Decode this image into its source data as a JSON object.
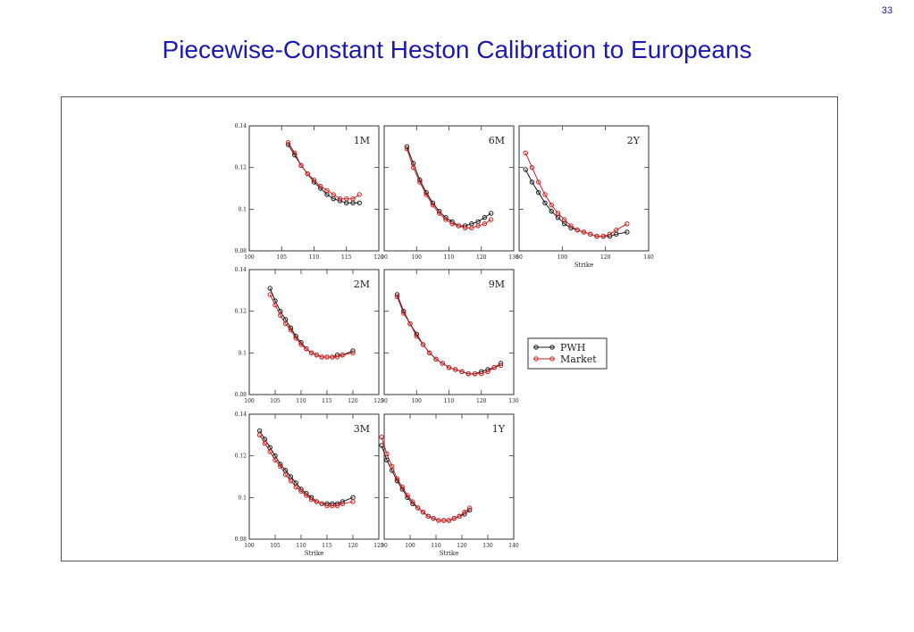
{
  "page": {
    "number": "33",
    "title": "Piecewise-Constant Heston Calibration to Europeans"
  },
  "colors": {
    "pwh": "#1a1a1a",
    "market": "#d22020",
    "title": "#1a1ab0"
  },
  "legend": {
    "entries": [
      "PWH",
      "Market"
    ]
  },
  "chart_data": [
    {
      "type": "line",
      "label": "1M",
      "xlim": [
        100,
        120
      ],
      "ylim": [
        0.08,
        0.14
      ],
      "xticks": [
        "100",
        "105",
        "110",
        "115",
        "120"
      ],
      "yticks": [
        "0.08",
        "0.1",
        "0.12",
        "0.14"
      ],
      "xlabel": "",
      "series": [
        {
          "name": "PWH",
          "x": [
            106,
            107,
            108,
            109,
            110,
            111,
            112,
            113,
            114,
            115,
            116,
            117
          ],
          "y": [
            0.131,
            0.126,
            0.121,
            0.117,
            0.113,
            0.11,
            0.107,
            0.105,
            0.104,
            0.103,
            0.103,
            0.103
          ]
        },
        {
          "name": "Market",
          "x": [
            106,
            107,
            108,
            109,
            110,
            111,
            112,
            113,
            114,
            115,
            116,
            117
          ],
          "y": [
            0.132,
            0.127,
            0.121,
            0.117,
            0.114,
            0.111,
            0.109,
            0.107,
            0.105,
            0.105,
            0.105,
            0.107
          ]
        }
      ]
    },
    {
      "type": "line",
      "label": "6M",
      "xlim": [
        90,
        130
      ],
      "ylim": [
        0.08,
        0.14
      ],
      "xticks": [
        "90",
        "100",
        "110",
        "120",
        "130"
      ],
      "yticks": [],
      "xlabel": "",
      "series": [
        {
          "name": "PWH",
          "x": [
            97,
            99,
            101,
            103,
            105,
            107,
            109,
            111,
            113,
            115,
            117,
            119,
            121,
            123
          ],
          "y": [
            0.13,
            0.122,
            0.114,
            0.108,
            0.103,
            0.099,
            0.096,
            0.094,
            0.092,
            0.092,
            0.093,
            0.094,
            0.096,
            0.098
          ]
        },
        {
          "name": "Market",
          "x": [
            97,
            99,
            101,
            103,
            105,
            107,
            109,
            111,
            113,
            115,
            117,
            119,
            121,
            123
          ],
          "y": [
            0.129,
            0.12,
            0.113,
            0.107,
            0.102,
            0.098,
            0.095,
            0.093,
            0.092,
            0.091,
            0.091,
            0.092,
            0.093,
            0.095
          ]
        }
      ]
    },
    {
      "type": "line",
      "label": "2Y",
      "xlim": [
        80,
        140
      ],
      "ylim": [
        0.08,
        0.14
      ],
      "xticks": [
        "80",
        "100",
        "120",
        "140"
      ],
      "yticks": [],
      "xlabel": "Strike",
      "series": [
        {
          "name": "PWH",
          "x": [
            83,
            86,
            89,
            92,
            95,
            98,
            101,
            104,
            107,
            110,
            113,
            116,
            119,
            122,
            125,
            130
          ],
          "y": [
            0.119,
            0.113,
            0.108,
            0.103,
            0.099,
            0.096,
            0.093,
            0.091,
            0.09,
            0.089,
            0.088,
            0.087,
            0.087,
            0.087,
            0.088,
            0.089
          ]
        },
        {
          "name": "Market",
          "x": [
            83,
            86,
            89,
            92,
            95,
            98,
            101,
            104,
            107,
            110,
            113,
            116,
            119,
            122,
            125,
            130
          ],
          "y": [
            0.127,
            0.12,
            0.113,
            0.107,
            0.102,
            0.098,
            0.095,
            0.092,
            0.09,
            0.089,
            0.088,
            0.087,
            0.087,
            0.088,
            0.09,
            0.093
          ]
        }
      ]
    },
    {
      "type": "line",
      "label": "2M",
      "xlim": [
        100,
        125
      ],
      "ylim": [
        0.08,
        0.14
      ],
      "xticks": [
        "100",
        "105",
        "110",
        "115",
        "120",
        "125"
      ],
      "yticks": [
        "0.08",
        "0.1",
        "0.12",
        "0.14"
      ],
      "xlabel": "",
      "series": [
        {
          "name": "PWH",
          "x": [
            104,
            105,
            106,
            107,
            108,
            109,
            110,
            111,
            112,
            113,
            114,
            115,
            116,
            117,
            118,
            120
          ],
          "y": [
            0.131,
            0.125,
            0.12,
            0.116,
            0.112,
            0.108,
            0.105,
            0.102,
            0.1,
            0.099,
            0.098,
            0.098,
            0.098,
            0.099,
            0.099,
            0.101
          ]
        },
        {
          "name": "Market",
          "x": [
            104,
            105,
            106,
            107,
            108,
            109,
            110,
            111,
            112,
            113,
            114,
            115,
            116,
            117,
            118,
            120
          ],
          "y": [
            0.128,
            0.123,
            0.118,
            0.114,
            0.111,
            0.107,
            0.104,
            0.102,
            0.1,
            0.099,
            0.098,
            0.098,
            0.098,
            0.098,
            0.099,
            0.1
          ]
        }
      ]
    },
    {
      "type": "line",
      "label": "9M",
      "xlim": [
        90,
        130
      ],
      "ylim": [
        0.08,
        0.14
      ],
      "xticks": [
        "90",
        "100",
        "110",
        "120",
        "130"
      ],
      "yticks": [],
      "xlabel": "",
      "series": [
        {
          "name": "PWH",
          "x": [
            94,
            96,
            98,
            100,
            102,
            104,
            106,
            108,
            110,
            112,
            114,
            116,
            118,
            120,
            122,
            124,
            126
          ],
          "y": [
            0.128,
            0.12,
            0.114,
            0.109,
            0.104,
            0.1,
            0.097,
            0.095,
            0.093,
            0.092,
            0.091,
            0.09,
            0.09,
            0.091,
            0.092,
            0.093,
            0.095
          ]
        },
        {
          "name": "Market",
          "x": [
            94,
            96,
            98,
            100,
            102,
            104,
            106,
            108,
            110,
            112,
            114,
            116,
            118,
            120,
            122,
            124,
            126
          ],
          "y": [
            0.127,
            0.119,
            0.114,
            0.108,
            0.104,
            0.1,
            0.097,
            0.095,
            0.093,
            0.092,
            0.091,
            0.09,
            0.09,
            0.09,
            0.091,
            0.093,
            0.094
          ]
        }
      ]
    },
    {
      "type": "line",
      "label": "3M",
      "xlim": [
        100,
        125
      ],
      "ylim": [
        0.08,
        0.14
      ],
      "xticks": [
        "100",
        "105",
        "110",
        "115",
        "120",
        "125"
      ],
      "yticks": [
        "0.08",
        "0.1",
        "0.12",
        "0.14"
      ],
      "xlabel": "Strike",
      "series": [
        {
          "name": "PWH",
          "x": [
            102,
            103,
            104,
            105,
            106,
            107,
            108,
            109,
            110,
            111,
            112,
            113,
            114,
            115,
            116,
            117,
            118,
            120
          ],
          "y": [
            0.132,
            0.128,
            0.124,
            0.12,
            0.116,
            0.113,
            0.11,
            0.107,
            0.104,
            0.102,
            0.1,
            0.098,
            0.097,
            0.097,
            0.097,
            0.097,
            0.098,
            0.1
          ]
        },
        {
          "name": "Market",
          "x": [
            102,
            103,
            104,
            105,
            106,
            107,
            108,
            109,
            110,
            111,
            112,
            113,
            114,
            115,
            116,
            117,
            118,
            120
          ],
          "y": [
            0.13,
            0.126,
            0.122,
            0.118,
            0.115,
            0.111,
            0.108,
            0.105,
            0.103,
            0.101,
            0.099,
            0.098,
            0.097,
            0.096,
            0.096,
            0.096,
            0.097,
            0.098
          ]
        }
      ]
    },
    {
      "type": "line",
      "label": "1Y",
      "xlim": [
        90,
        140
      ],
      "ylim": [
        0.08,
        0.14
      ],
      "xticks": [
        "90",
        "100",
        "110",
        "120",
        "130",
        "140"
      ],
      "yticks": [],
      "xlabel": "Strike",
      "series": [
        {
          "name": "PWH",
          "x": [
            89,
            91,
            93,
            95,
            97,
            99,
            101,
            103,
            105,
            107,
            109,
            111,
            113,
            115,
            117,
            119,
            121,
            123
          ],
          "y": [
            0.125,
            0.118,
            0.113,
            0.108,
            0.104,
            0.1,
            0.097,
            0.095,
            0.093,
            0.091,
            0.09,
            0.089,
            0.089,
            0.089,
            0.09,
            0.091,
            0.092,
            0.094
          ]
        },
        {
          "name": "Market",
          "x": [
            89,
            91,
            93,
            95,
            97,
            99,
            101,
            103,
            105,
            107,
            109,
            111,
            113,
            115,
            117,
            119,
            121,
            123
          ],
          "y": [
            0.129,
            0.121,
            0.115,
            0.109,
            0.105,
            0.101,
            0.098,
            0.095,
            0.093,
            0.091,
            0.09,
            0.089,
            0.089,
            0.089,
            0.09,
            0.091,
            0.093,
            0.095
          ]
        }
      ]
    }
  ]
}
